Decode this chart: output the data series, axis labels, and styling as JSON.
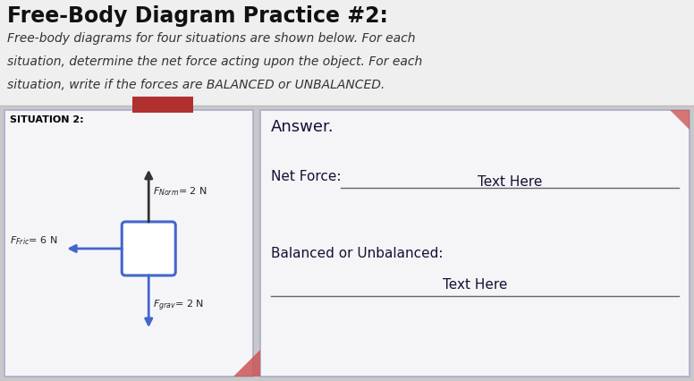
{
  "title": "Free-Body Diagram Practice #2:",
  "subtitle_line1": "Free-body diagrams for four situations are shown below. For each",
  "subtitle_line2": "situation, determine the net force acting upon the object. For each",
  "subtitle_line3": "situation, write if the forces are BALANCED or UNBALANCED.",
  "situation_label": "SITUATION 2:",
  "answer_label": "Answer.",
  "net_force_label": "Net Force:",
  "net_force_answer": "Text Here",
  "balanced_label": "Balanced or Unbalanced:",
  "balanced_answer": "Text Here",
  "force_norm_val": "2 N",
  "force_norm_sub": "Norm",
  "force_fric_val": "6 N",
  "force_fric_sub": "Fric",
  "force_grav_val": "2 N",
  "force_grav_sub": "grav",
  "bg_color": "#c8c8c8",
  "header_bg": "#efefef",
  "situation_box_bg": "#f5f5f8",
  "answer_box_bg": "#f5f5f8",
  "title_color": "#111111",
  "subtitle_color": "#333333",
  "arrow_up_color": "#333333",
  "arrow_lr_color": "#4466cc",
  "arrow_down_color": "#4466cc",
  "object_box_color": "#4466cc",
  "red_tab_color": "#b03030",
  "red_corner_color": "#cc5555",
  "line_color": "#666666",
  "border_color": "#aaaacc",
  "figw": 7.76,
  "figh": 4.26,
  "dpi": 100
}
